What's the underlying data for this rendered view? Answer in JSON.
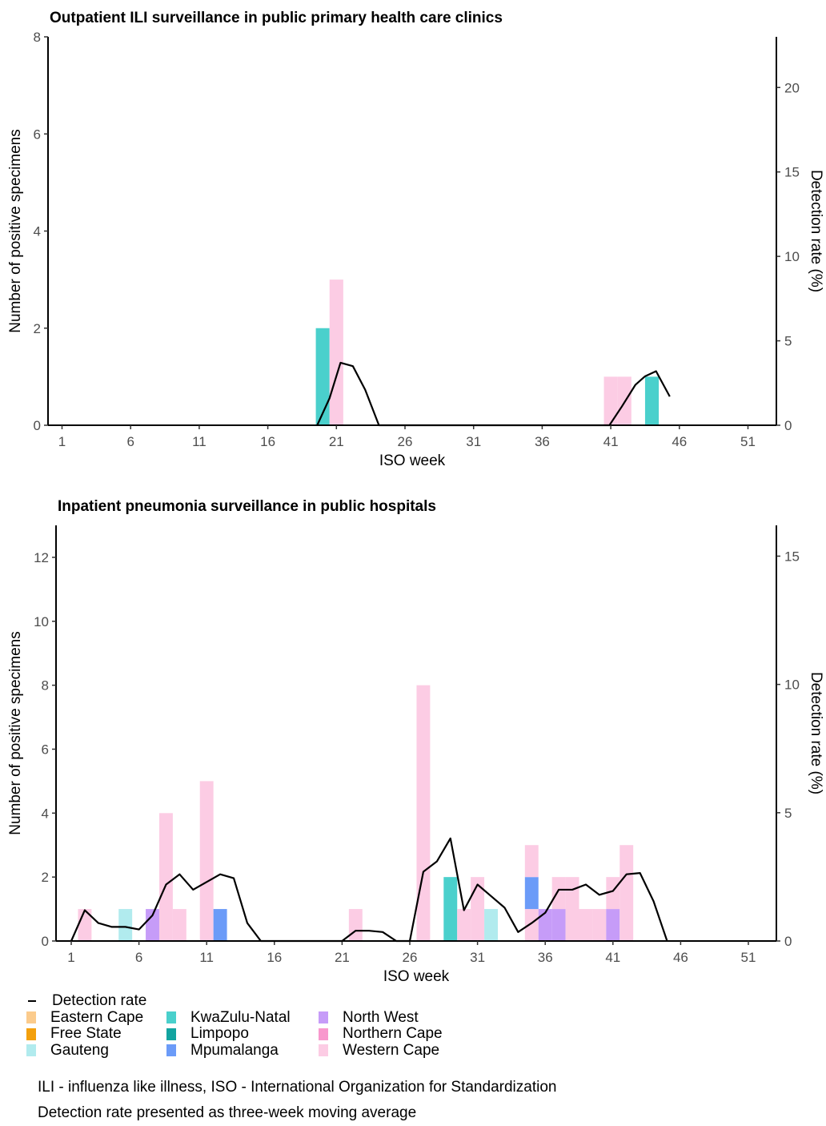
{
  "legend": {
    "line_label": "Detection rate",
    "provinces": [
      {
        "name": "Eastern Cape",
        "color": "#fbcb8c"
      },
      {
        "name": "Free State",
        "color": "#f3a00d"
      },
      {
        "name": "Gauteng",
        "color": "#b1ebee"
      },
      {
        "name": "KwaZulu-Natal",
        "color": "#4ad0cc"
      },
      {
        "name": "Limpopo",
        "color": "#12a4a0"
      },
      {
        "name": "Mpumalanga",
        "color": "#6b9bf8"
      },
      {
        "name": "North West",
        "color": "#c69cf8"
      },
      {
        "name": "Northern Cape",
        "color": "#f898cd"
      },
      {
        "name": "Western Cape",
        "color": "#fccce4"
      }
    ]
  },
  "notes": [
    "ILI - influenza like illness, ISO - International Organization for Standardization",
    "Detection rate presented as three-week moving average"
  ],
  "chart_data": [
    {
      "type": "bar",
      "title": "Outpatient ILI surveillance in public primary health care clinics",
      "xlabel": "ISO week",
      "ylabel": "Number of positive specimens",
      "y2label": "Detection rate (%)",
      "xlim": [
        1,
        53
      ],
      "ylim": [
        0,
        8
      ],
      "y2lim": [
        0,
        23
      ],
      "xticks": [
        1,
        6,
        11,
        16,
        21,
        26,
        31,
        36,
        41,
        46,
        51
      ],
      "yticks": [
        0,
        2,
        4,
        6,
        8
      ],
      "y2ticks": [
        0,
        5,
        10,
        15,
        20
      ],
      "grid": false,
      "bars": [
        {
          "week": 20,
          "province": "KwaZulu-Natal",
          "value": 2
        },
        {
          "week": 21,
          "province": "Western Cape",
          "value": 3
        },
        {
          "week": 41,
          "province": "Western Cape",
          "value": 1
        },
        {
          "week": 42,
          "province": "Western Cape",
          "value": 1
        },
        {
          "week": 44,
          "province": "KwaZulu-Natal",
          "value": 1
        }
      ],
      "detection_rate": {
        "x": [
          19.6,
          20.5,
          21.3,
          22.2,
          23.1,
          24.1,
          40.9,
          41.8,
          42.8,
          43.5,
          44.3,
          45.3
        ],
        "y": [
          0,
          1.6,
          3.7,
          3.5,
          2.1,
          0,
          0,
          1.1,
          2.4,
          2.9,
          3.2,
          1.7
        ]
      }
    },
    {
      "type": "bar",
      "title": "Inpatient pneumonia surveillance in public hospitals",
      "xlabel": "ISO week",
      "ylabel": "Number of positive specimens",
      "y2label": "Detection rate (%)",
      "xlim": [
        0,
        53
      ],
      "ylim": [
        0,
        13
      ],
      "y2lim": [
        0,
        16.2
      ],
      "xticks": [
        1,
        6,
        11,
        16,
        21,
        26,
        31,
        36,
        41,
        46,
        51
      ],
      "yticks": [
        0,
        2,
        4,
        6,
        8,
        10,
        12
      ],
      "y2ticks": [
        0,
        5,
        10,
        15
      ],
      "grid": false,
      "bars": [
        {
          "week": 2,
          "province": "Western Cape",
          "value": 1
        },
        {
          "week": 5,
          "province": "Gauteng",
          "value": 1
        },
        {
          "week": 7,
          "province": "North West",
          "value": 1
        },
        {
          "week": 8,
          "province": "Western Cape",
          "value": 4
        },
        {
          "week": 9,
          "province": "Western Cape",
          "value": 1
        },
        {
          "week": 11,
          "province": "Western Cape",
          "value": 5
        },
        {
          "week": 12,
          "province": "Mpumalanga",
          "value": 1
        },
        {
          "week": 22,
          "province": "Western Cape",
          "value": 1
        },
        {
          "week": 27,
          "province": "Western Cape",
          "value": 8
        },
        {
          "week": 29,
          "province": "KwaZulu-Natal",
          "value": 2
        },
        {
          "week": 30,
          "province": "Western Cape",
          "value": 1
        },
        {
          "week": 31,
          "province": "Western Cape",
          "value": 2
        },
        {
          "week": 32,
          "province": "Gauteng",
          "value": 1
        },
        {
          "week": 35,
          "province": "Western Cape",
          "value": 1
        },
        {
          "week": 35,
          "province": "Mpumalanga",
          "value": 1
        },
        {
          "week": 35,
          "province": "Western Cape",
          "value": 1
        },
        {
          "week": 36,
          "province": "North West",
          "value": 1
        },
        {
          "week": 37,
          "province": "North West",
          "value": 1
        },
        {
          "week": 37,
          "province": "Western Cape",
          "value": 1
        },
        {
          "week": 38,
          "province": "Western Cape",
          "value": 2
        },
        {
          "week": 39,
          "province": "Western Cape",
          "value": 1
        },
        {
          "week": 40,
          "province": "Western Cape",
          "value": 1
        },
        {
          "week": 41,
          "province": "North West",
          "value": 1
        },
        {
          "week": 41,
          "province": "Western Cape",
          "value": 1
        },
        {
          "week": 42,
          "province": "Western Cape",
          "value": 3
        }
      ],
      "detection_rate": {
        "x": [
          1,
          2,
          3,
          4,
          5,
          6,
          7,
          8,
          9,
          10,
          11,
          12,
          13,
          14,
          15,
          21,
          22,
          23,
          24,
          25,
          26,
          27,
          28,
          29,
          30,
          31,
          32,
          33,
          34,
          35,
          36,
          37,
          38,
          39,
          40,
          41,
          42,
          43,
          44,
          45
        ],
        "y": [
          0,
          1.2,
          0.7,
          0.55,
          0.55,
          0.45,
          1.0,
          2.2,
          2.6,
          2.0,
          2.3,
          2.6,
          2.45,
          0.7,
          0,
          0,
          0.4,
          0.4,
          0.35,
          0,
          0,
          2.7,
          3.1,
          4.0,
          1.2,
          2.2,
          1.75,
          1.3,
          0.35,
          0.7,
          1.1,
          2.0,
          2.0,
          2.2,
          1.8,
          1.95,
          2.6,
          2.65,
          1.55,
          0
        ]
      }
    }
  ]
}
